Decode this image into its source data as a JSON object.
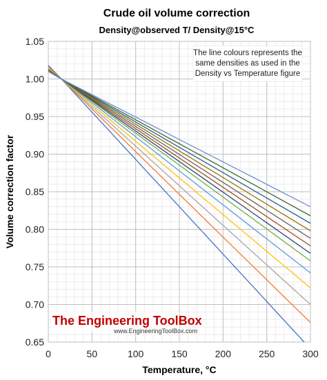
{
  "chart_data": {
    "type": "line",
    "title": "Crude oil volume correction",
    "subtitle": "Density@observed T/ Density@15°C",
    "xlabel": "Temperature, °C",
    "ylabel": "Volume correction factor",
    "xlim": [
      0,
      300
    ],
    "ylim": [
      0.65,
      1.05
    ],
    "x_ticks": [
      "0",
      "50",
      "100",
      "150",
      "200",
      "250",
      "300"
    ],
    "y_ticks": [
      "0.65",
      "0.70",
      "0.75",
      "0.80",
      "0.85",
      "0.90",
      "0.95",
      "1.00",
      "1.05"
    ],
    "grid": true,
    "annotation": [
      "The line colours represents the",
      "same densities as used in the",
      "Density vs Temperature figure"
    ],
    "watermark": {
      "main": "The Engineering ToolBox",
      "url": "www.EngineeringToolBox.com"
    },
    "x": [
      0,
      15,
      300
    ],
    "series": [
      {
        "color": "#4472c4",
        "values": [
          1.018,
          1.0,
          0.641
        ]
      },
      {
        "color": "#ed7d31",
        "values": [
          1.016,
          1.0,
          0.676
        ]
      },
      {
        "color": "#a5a5a5",
        "values": [
          1.015,
          1.0,
          0.7
        ]
      },
      {
        "color": "#ffc000",
        "values": [
          1.014,
          1.0,
          0.722
        ]
      },
      {
        "color": "#5b9bd5",
        "values": [
          1.013,
          1.0,
          0.742
        ]
      },
      {
        "color": "#70ad47",
        "values": [
          1.013,
          1.0,
          0.758
        ]
      },
      {
        "color": "#264478",
        "values": [
          1.012,
          1.0,
          0.768
        ]
      },
      {
        "color": "#9e480e",
        "values": [
          1.012,
          1.0,
          0.778
        ]
      },
      {
        "color": "#636363",
        "values": [
          1.011,
          1.0,
          0.788
        ]
      },
      {
        "color": "#997300",
        "values": [
          1.011,
          1.0,
          0.798
        ]
      },
      {
        "color": "#255e91",
        "values": [
          1.01,
          1.0,
          0.808
        ]
      },
      {
        "color": "#43682b",
        "values": [
          1.01,
          1.0,
          0.818
        ]
      },
      {
        "color": "#698ed0",
        "values": [
          1.01,
          1.0,
          0.83
        ]
      }
    ]
  }
}
